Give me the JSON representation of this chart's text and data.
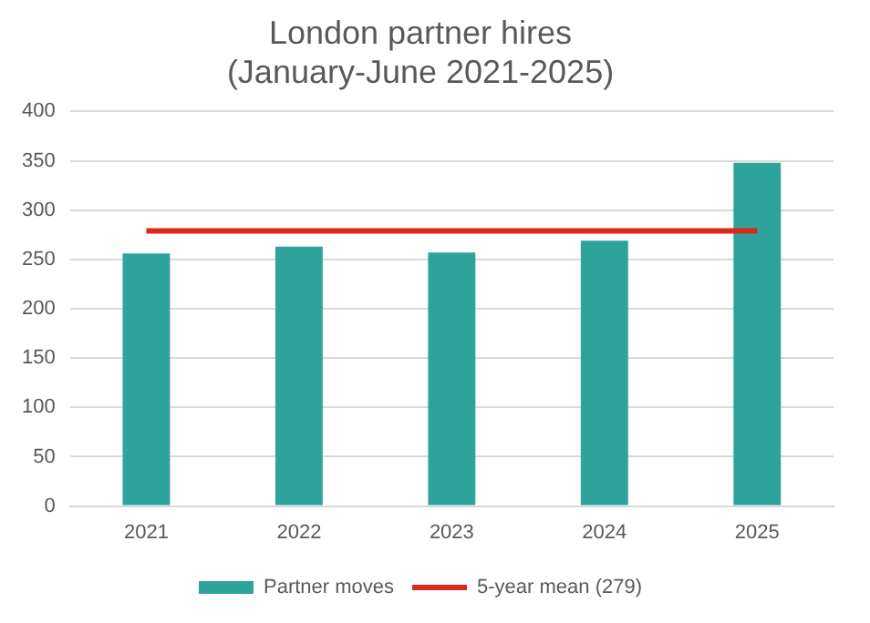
{
  "chart_data": {
    "type": "bar",
    "title": "London partner hires\n(January-June 2021-2025)",
    "categories": [
      "2021",
      "2022",
      "2023",
      "2024",
      "2025"
    ],
    "series": [
      {
        "name": "Partner moves",
        "color": "#2ea39c",
        "values": [
          256,
          263,
          257,
          269,
          348
        ]
      },
      {
        "name": "5-year mean (279)",
        "type": "line",
        "color": "#d9291c",
        "values": [
          279,
          279,
          279,
          279,
          279
        ],
        "marker": "none"
      }
    ],
    "ylim": [
      0,
      400
    ],
    "yticks": [
      0,
      50,
      100,
      150,
      200,
      250,
      300,
      350,
      400
    ],
    "grid": "y",
    "legend": "bottom"
  }
}
